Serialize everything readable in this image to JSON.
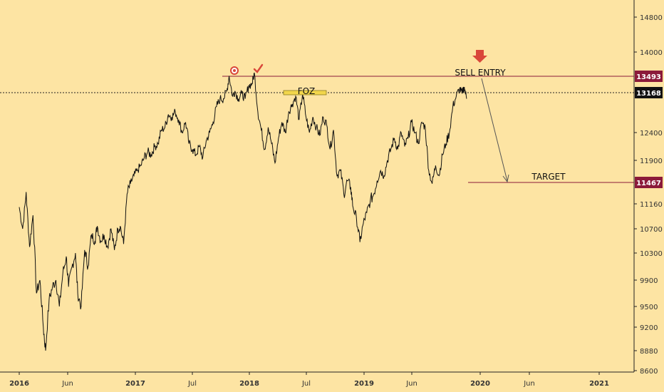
{
  "chart_data": {
    "type": "line",
    "y_ticks": [
      14800,
      14000,
      13493,
      13168,
      12400,
      11900,
      11467,
      11160,
      10700,
      10300,
      9900,
      9500,
      9200,
      8880,
      8600
    ],
    "x_ticks": [
      {
        "label": "2016",
        "bold": true
      },
      {
        "label": "Jun",
        "bold": false
      },
      {
        "label": "2017",
        "bold": true
      },
      {
        "label": "Jul",
        "bold": false
      },
      {
        "label": "2018",
        "bold": true
      },
      {
        "label": "Jul",
        "bold": false
      },
      {
        "label": "2019",
        "bold": true
      },
      {
        "label": "Jun",
        "bold": false
      },
      {
        "label": "2020",
        "bold": true
      },
      {
        "label": "Jun",
        "bold": false
      },
      {
        "label": "2021",
        "bold": true
      }
    ],
    "price_labels": {
      "sell": "13493",
      "current": "13168",
      "target": "11467"
    },
    "levels": {
      "sell": 13493,
      "current": 13168,
      "target": 11467
    },
    "annotations": {
      "sell_entry": "SELL ENTRY",
      "target": "TARGET",
      "zone": "FOZ"
    },
    "colors": {
      "price": "#111111",
      "level": "#8b1a3a",
      "arrow_down": "#d9473a",
      "zone": "#f2d64b"
    },
    "series": [
      {
        "values": [
          [
            2016.0,
            11100
          ],
          [
            2016.03,
            10700
          ],
          [
            2016.06,
            11330
          ],
          [
            2016.09,
            10400
          ],
          [
            2016.12,
            10950
          ],
          [
            2016.15,
            9700
          ],
          [
            2016.18,
            9900
          ],
          [
            2016.21,
            9200
          ],
          [
            2016.23,
            8880
          ],
          [
            2016.26,
            9600
          ],
          [
            2016.29,
            9800
          ],
          [
            2016.32,
            9900
          ],
          [
            2016.35,
            9500
          ],
          [
            2016.38,
            10000
          ],
          [
            2016.41,
            10250
          ],
          [
            2016.43,
            9800
          ],
          [
            2016.46,
            10100
          ],
          [
            2016.49,
            10300
          ],
          [
            2016.51,
            9700
          ],
          [
            2016.54,
            9500
          ],
          [
            2016.57,
            10350
          ],
          [
            2016.6,
            10100
          ],
          [
            2016.63,
            10600
          ],
          [
            2016.66,
            10500
          ],
          [
            2016.68,
            10750
          ],
          [
            2016.71,
            10500
          ],
          [
            2016.74,
            10600
          ],
          [
            2016.77,
            10400
          ],
          [
            2016.8,
            10700
          ],
          [
            2016.83,
            10350
          ],
          [
            2016.86,
            10700
          ],
          [
            2016.88,
            10750
          ],
          [
            2016.91,
            10450
          ],
          [
            2016.94,
            11300
          ],
          [
            2016.97,
            11450
          ],
          [
            2017.0,
            11600
          ],
          [
            2017.03,
            11700
          ],
          [
            2017.06,
            11800
          ],
          [
            2017.09,
            11950
          ],
          [
            2017.12,
            12050
          ],
          [
            2017.15,
            12000
          ],
          [
            2017.18,
            12150
          ],
          [
            2017.21,
            12200
          ],
          [
            2017.24,
            12450
          ],
          [
            2017.27,
            12500
          ],
          [
            2017.3,
            12750
          ],
          [
            2017.33,
            12700
          ],
          [
            2017.36,
            12800
          ],
          [
            2017.39,
            12650
          ],
          [
            2017.42,
            12400
          ],
          [
            2017.45,
            12600
          ],
          [
            2017.48,
            12200
          ],
          [
            2017.51,
            12100
          ],
          [
            2017.54,
            12000
          ],
          [
            2017.57,
            12150
          ],
          [
            2017.6,
            11950
          ],
          [
            2017.63,
            12250
          ],
          [
            2017.66,
            12400
          ],
          [
            2017.69,
            12600
          ],
          [
            2017.72,
            12900
          ],
          [
            2017.75,
            13050
          ],
          [
            2017.78,
            13050
          ],
          [
            2017.81,
            13200
          ],
          [
            2017.83,
            13500
          ],
          [
            2017.86,
            13100
          ],
          [
            2017.88,
            13200
          ],
          [
            2017.91,
            13050
          ],
          [
            2017.94,
            13150
          ],
          [
            2017.97,
            13050
          ],
          [
            2018.0,
            13300
          ],
          [
            2018.03,
            13350
          ],
          [
            2018.05,
            13560
          ],
          [
            2018.08,
            12800
          ],
          [
            2018.11,
            12450
          ],
          [
            2018.14,
            12100
          ],
          [
            2018.17,
            12500
          ],
          [
            2018.2,
            12200
          ],
          [
            2018.23,
            11850
          ],
          [
            2018.26,
            12300
          ],
          [
            2018.29,
            12600
          ],
          [
            2018.32,
            12400
          ],
          [
            2018.35,
            12800
          ],
          [
            2018.38,
            12950
          ],
          [
            2018.41,
            13100
          ],
          [
            2018.44,
            12650
          ],
          [
            2018.47,
            13150
          ],
          [
            2018.5,
            12700
          ],
          [
            2018.53,
            12400
          ],
          [
            2018.56,
            12700
          ],
          [
            2018.59,
            12500
          ],
          [
            2018.62,
            12350
          ],
          [
            2018.65,
            12700
          ],
          [
            2018.68,
            12550
          ],
          [
            2018.71,
            12100
          ],
          [
            2018.74,
            12450
          ],
          [
            2018.77,
            11600
          ],
          [
            2018.8,
            11700
          ],
          [
            2018.83,
            11300
          ],
          [
            2018.86,
            11500
          ],
          [
            2018.89,
            11400
          ],
          [
            2018.91,
            11100
          ],
          [
            2018.94,
            10900
          ],
          [
            2018.97,
            10480
          ],
          [
            2019.0,
            10800
          ],
          [
            2019.03,
            11000
          ],
          [
            2019.06,
            11200
          ],
          [
            2019.09,
            11300
          ],
          [
            2019.12,
            11500
          ],
          [
            2019.15,
            11700
          ],
          [
            2019.18,
            11600
          ],
          [
            2019.21,
            11900
          ],
          [
            2019.24,
            12100
          ],
          [
            2019.27,
            12300
          ],
          [
            2019.3,
            12100
          ],
          [
            2019.33,
            12400
          ],
          [
            2019.36,
            12150
          ],
          [
            2019.39,
            12300
          ],
          [
            2019.42,
            12600
          ],
          [
            2019.45,
            12400
          ],
          [
            2019.48,
            12200
          ],
          [
            2019.51,
            12600
          ],
          [
            2019.54,
            12500
          ],
          [
            2019.57,
            11700
          ],
          [
            2019.6,
            11450
          ],
          [
            2019.63,
            11800
          ],
          [
            2019.66,
            11600
          ],
          [
            2019.69,
            12000
          ],
          [
            2019.72,
            12200
          ],
          [
            2019.75,
            12400
          ],
          [
            2019.78,
            12900
          ],
          [
            2019.81,
            13100
          ],
          [
            2019.84,
            13250
          ],
          [
            2019.86,
            13150
          ],
          [
            2019.88,
            13280
          ],
          [
            2019.9,
            13050
          ]
        ]
      }
    ]
  }
}
